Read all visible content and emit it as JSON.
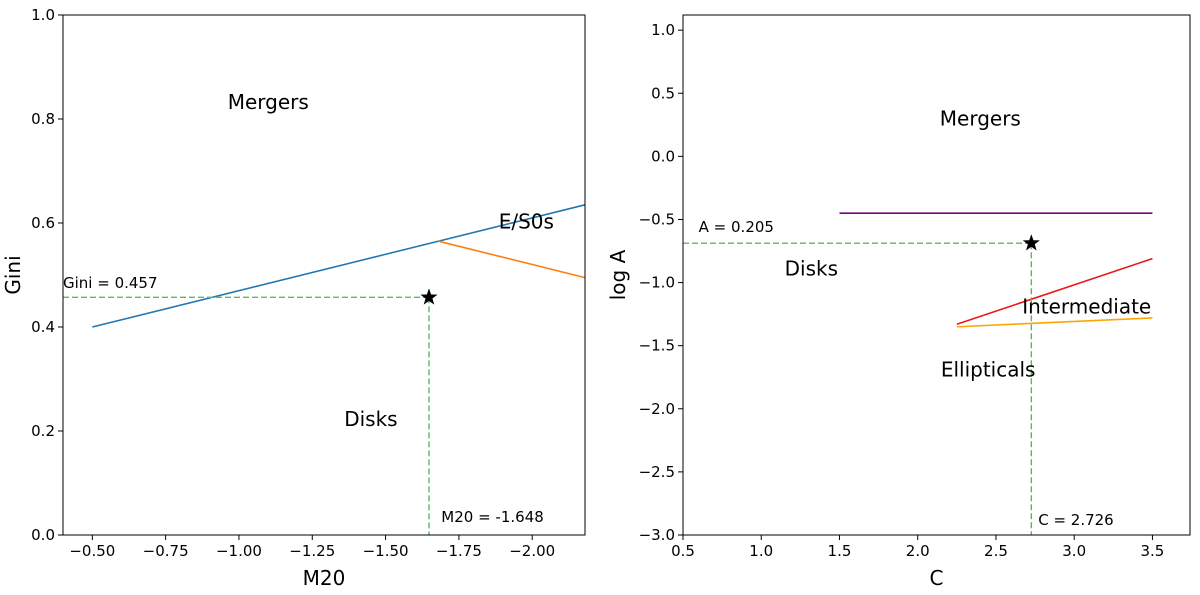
{
  "chart_data": [
    {
      "type": "line",
      "xlabel": "M20",
      "ylabel": "Gini",
      "xlim": [
        -0.4,
        -2.18
      ],
      "ylim": [
        0.0,
        1.0
      ],
      "x_inverted": true,
      "grid": false,
      "xticks": [
        -0.5,
        -0.75,
        -1.0,
        -1.25,
        -1.5,
        -1.75,
        -2.0
      ],
      "xtick_labels": [
        "−0.50",
        "−0.75",
        "−1.00",
        "−1.25",
        "−1.50",
        "−1.75",
        "−2.00"
      ],
      "yticks": [
        0.0,
        0.2,
        0.4,
        0.6,
        0.8,
        1.0
      ],
      "ytick_labels": [
        "0.0",
        "0.2",
        "0.4",
        "0.6",
        "0.8",
        "1.0"
      ],
      "series": [
        {
          "color": "#1f77b4",
          "x": [
            -0.5,
            -2.18
          ],
          "y": [
            0.4,
            0.635
          ]
        },
        {
          "color": "#ff7f0e",
          "x": [
            -1.68,
            -2.18
          ],
          "y": [
            0.565,
            0.495
          ]
        }
      ],
      "point": {
        "x": -1.648,
        "y": 0.457,
        "marker": "star",
        "color": "#000000"
      },
      "guide_color": "#5cb85c",
      "regions": [
        {
          "text": "Mergers",
          "x": -1.1,
          "y": 0.83
        },
        {
          "text": "Disks",
          "x": -1.45,
          "y": 0.22
        },
        {
          "text": "E/S0s",
          "x": -1.98,
          "y": 0.6
        }
      ],
      "annotations": [
        {
          "text": "Gini = 0.457",
          "x": -0.4,
          "y": 0.475
        },
        {
          "text": "M20 = -1.648",
          "x": -1.69,
          "y": 0.025
        }
      ]
    },
    {
      "type": "line",
      "xlabel": "C",
      "ylabel": "log A",
      "xlim": [
        0.5,
        3.74
      ],
      "ylim": [
        -3.0,
        1.12
      ],
      "grid": false,
      "xticks": [
        0.5,
        1.0,
        1.5,
        2.0,
        2.5,
        3.0,
        3.5
      ],
      "xtick_labels": [
        "0.5",
        "1.0",
        "1.5",
        "2.0",
        "2.5",
        "3.0",
        "3.5"
      ],
      "yticks": [
        -3.0,
        -2.5,
        -2.0,
        -1.5,
        -1.0,
        -0.5,
        0.0,
        0.5,
        1.0
      ],
      "ytick_labels": [
        "−3.0",
        "−2.5",
        "−2.0",
        "−1.5",
        "−1.0",
        "−0.5",
        "0.0",
        "0.5",
        "1.0"
      ],
      "series": [
        {
          "color": "#800080",
          "x": [
            1.5,
            3.5
          ],
          "y": [
            -0.45,
            -0.45
          ]
        },
        {
          "color": "#e8191a",
          "x": [
            2.25,
            3.5
          ],
          "y": [
            -1.33,
            -0.81
          ]
        },
        {
          "color": "#ffa500",
          "x": [
            2.25,
            3.5
          ],
          "y": [
            -1.35,
            -1.28
          ]
        }
      ],
      "point": {
        "x": 2.726,
        "y": -0.688,
        "marker": "star",
        "color": "#000000"
      },
      "guide_color": "#5cb85c",
      "regions": [
        {
          "text": "Mergers",
          "x": 2.4,
          "y": 0.29
        },
        {
          "text": "Disks",
          "x": 1.32,
          "y": -0.9
        },
        {
          "text": "Intermediate",
          "x": 3.08,
          "y": -1.2
        },
        {
          "text": "Ellipticals",
          "x": 2.45,
          "y": -1.7
        }
      ],
      "annotations": [
        {
          "text": "A = 0.205",
          "x": 0.6,
          "y": -0.6
        },
        {
          "text": "C = 2.726",
          "x": 2.77,
          "y": -2.92
        }
      ]
    }
  ]
}
